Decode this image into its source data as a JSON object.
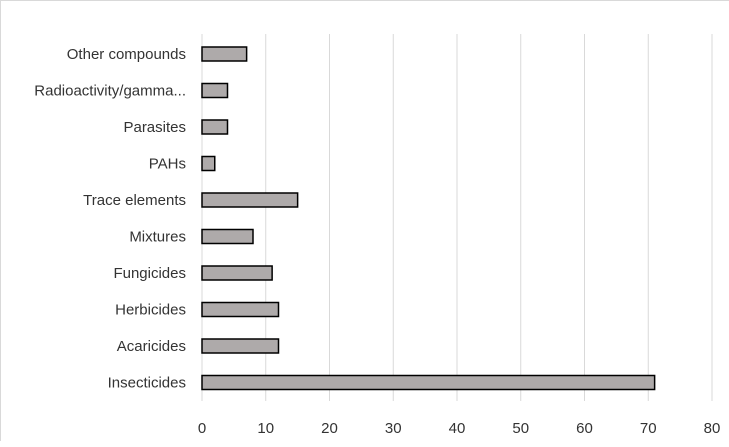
{
  "chart_data": {
    "type": "bar",
    "orientation": "horizontal",
    "categories": [
      "Insecticides",
      "Acaricides",
      "Herbicides",
      "Fungicides",
      "Mixtures",
      "Trace elements",
      "PAHs",
      "Parasites",
      "Radioactivity/gamma...",
      "Other compounds"
    ],
    "values": [
      71,
      12,
      12,
      11,
      8,
      15,
      2,
      4,
      4,
      7
    ],
    "xlim": [
      0,
      80
    ],
    "xticks": [
      0,
      10,
      20,
      30,
      40,
      50,
      60,
      70,
      80
    ],
    "grid": "vertical",
    "legend": "none",
    "title": "",
    "xlabel": "",
    "ylabel": ""
  },
  "colors": {
    "bar_fill": "#aeaaaa",
    "bar_stroke": "#000000",
    "grid": "#d9d9d9",
    "text": "#333333"
  }
}
